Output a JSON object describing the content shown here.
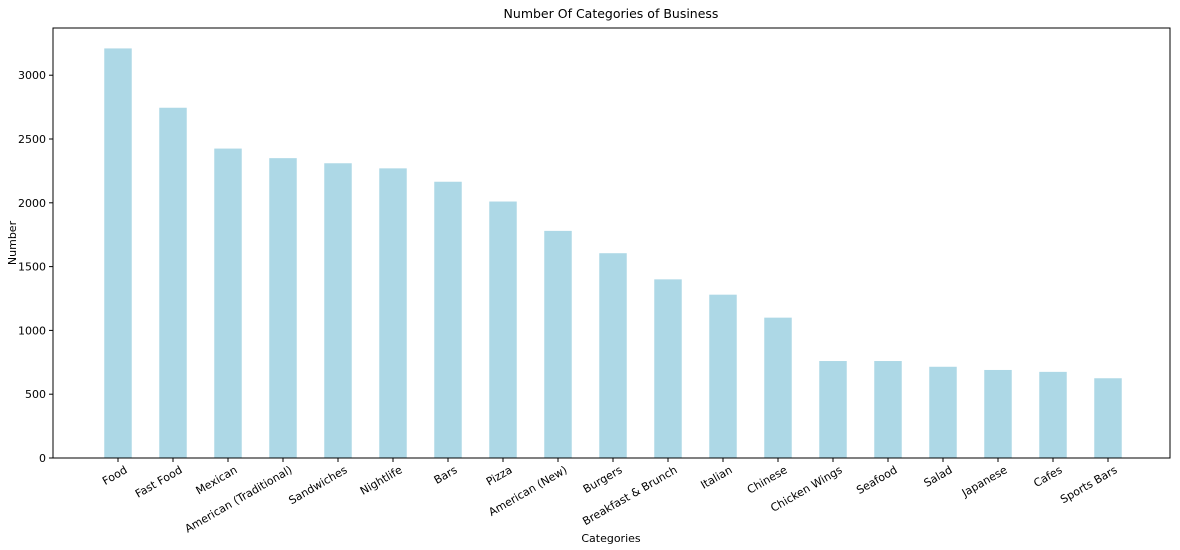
{
  "chart_data": {
    "type": "bar",
    "title": "Number Of Categories of Business",
    "xlabel": "Categories",
    "ylabel": "Number",
    "categories": [
      "Food",
      "Fast Food",
      "Mexican",
      "American (Traditional)",
      "Sandwiches",
      "Nightlife",
      "Bars",
      "Pizza",
      "American (New)",
      "Burgers",
      "Breakfast & Brunch",
      "Italian",
      "Chinese",
      "Chicken Wings",
      "Seafood",
      "Salad",
      "Japanese",
      "Cafes",
      "Sports Bars"
    ],
    "values": [
      3210,
      2745,
      2425,
      2350,
      2310,
      2270,
      2165,
      2010,
      1780,
      1605,
      1400,
      1280,
      1100,
      760,
      760,
      715,
      690,
      675,
      625
    ],
    "ylim": [
      0,
      3370
    ],
    "yticks": [
      0,
      500,
      1000,
      1500,
      2000,
      2500,
      3000
    ],
    "bar_color": "#add8e6",
    "grid": false,
    "xtick_rotation_deg": 30
  }
}
